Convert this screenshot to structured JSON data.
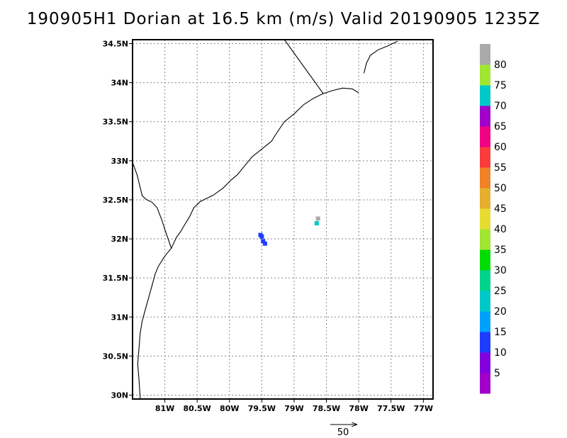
{
  "title": "190905H1 Dorian at 16.5 km (m/s) Valid 20190905  1235Z",
  "map": {
    "lon_range": [
      -81.5,
      -76.85
    ],
    "lat_range": [
      29.95,
      34.55
    ],
    "lon_ticks": [
      {
        "value": -81,
        "label": "81W"
      },
      {
        "value": -80.5,
        "label": "80.5W"
      },
      {
        "value": -80,
        "label": "80W"
      },
      {
        "value": -79.5,
        "label": "79.5W"
      },
      {
        "value": -79,
        "label": "79W"
      },
      {
        "value": -78.5,
        "label": "78.5W"
      },
      {
        "value": -78,
        "label": "78W"
      },
      {
        "value": -77.5,
        "label": "77.5W"
      },
      {
        "value": -77,
        "label": "77W"
      }
    ],
    "lat_ticks": [
      {
        "value": 30,
        "label": "30N"
      },
      {
        "value": 30.5,
        "label": "30.5N"
      },
      {
        "value": 31,
        "label": "31N"
      },
      {
        "value": 31.5,
        "label": "31.5N"
      },
      {
        "value": 32,
        "label": "32N"
      },
      {
        "value": 32.5,
        "label": "32.5N"
      },
      {
        "value": 33,
        "label": "33N"
      },
      {
        "value": 33.5,
        "label": "33.5N"
      },
      {
        "value": 34,
        "label": "34N"
      },
      {
        "value": 34.5,
        "label": "34.5N"
      }
    ],
    "grid": true,
    "coastline": [
      [
        -81.5,
        32.98
      ],
      [
        -81.43,
        32.82
      ],
      [
        -81.35,
        32.55
      ],
      [
        -81.28,
        32.5
      ],
      [
        -81.2,
        32.47
      ],
      [
        -81.12,
        32.4
      ],
      [
        -81.05,
        32.25
      ],
      [
        -81.0,
        32.12
      ],
      [
        -80.95,
        32.0
      ],
      [
        -80.9,
        31.88
      ],
      [
        -81.0,
        31.78
      ],
      [
        -81.1,
        31.65
      ],
      [
        -81.15,
        31.55
      ],
      [
        -81.2,
        31.4
      ],
      [
        -81.25,
        31.25
      ],
      [
        -81.3,
        31.1
      ],
      [
        -81.35,
        30.95
      ],
      [
        -81.38,
        30.8
      ],
      [
        -81.4,
        30.6
      ],
      [
        -81.42,
        30.4
      ],
      [
        -81.4,
        30.2
      ],
      [
        -81.38,
        29.95
      ]
    ],
    "coastline_north": [
      [
        -80.9,
        31.88
      ],
      [
        -80.82,
        32.02
      ],
      [
        -80.75,
        32.1
      ],
      [
        -80.68,
        32.2
      ],
      [
        -80.62,
        32.28
      ],
      [
        -80.55,
        32.4
      ],
      [
        -80.45,
        32.48
      ],
      [
        -80.35,
        32.52
      ],
      [
        -80.25,
        32.56
      ],
      [
        -80.1,
        32.65
      ],
      [
        -79.98,
        32.75
      ],
      [
        -79.88,
        32.82
      ],
      [
        -79.78,
        32.92
      ],
      [
        -79.65,
        33.05
      ],
      [
        -79.5,
        33.15
      ],
      [
        -79.35,
        33.25
      ],
      [
        -79.25,
        33.38
      ],
      [
        -79.15,
        33.5
      ],
      [
        -79.0,
        33.6
      ],
      [
        -78.85,
        33.72
      ],
      [
        -78.7,
        33.8
      ],
      [
        -78.55,
        33.86
      ],
      [
        -78.4,
        33.9
      ],
      [
        -78.25,
        33.93
      ],
      [
        -78.1,
        33.92
      ],
      [
        -78.0,
        33.87
      ]
    ],
    "coastline_outer_banks": [
      [
        -77.92,
        34.12
      ],
      [
        -77.88,
        34.25
      ],
      [
        -77.82,
        34.35
      ],
      [
        -77.7,
        34.42
      ],
      [
        -77.55,
        34.47
      ],
      [
        -77.4,
        34.53
      ]
    ],
    "state_border": [
      [
        -79.15,
        34.55
      ],
      [
        -78.55,
        33.86
      ]
    ],
    "wind_cells": [
      {
        "lon": -79.5,
        "lat": 32.03,
        "speed": 12
      },
      {
        "lon": -79.48,
        "lat": 31.97,
        "speed": 10
      },
      {
        "lon": -79.45,
        "lat": 31.94,
        "speed": 11
      },
      {
        "lon": -79.52,
        "lat": 32.05,
        "speed": 13
      },
      {
        "lon": -78.65,
        "lat": 32.2,
        "speed": 22
      },
      {
        "lon": -78.63,
        "lat": 32.26,
        "speed": 84
      }
    ]
  },
  "colorbar": {
    "labels": [
      "5",
      "10",
      "15",
      "20",
      "25",
      "30",
      "35",
      "40",
      "45",
      "50",
      "55",
      "60",
      "65",
      "70",
      "75",
      "80"
    ],
    "colors": [
      "#a000c8",
      "#8200dc",
      "#1e3cff",
      "#00a0ff",
      "#00c8c8",
      "#00d28c",
      "#00dc00",
      "#a0e632",
      "#e6dc32",
      "#e6af2d",
      "#f08228",
      "#fa3c3c",
      "#f00082",
      "#a000c8",
      "#00c8c8",
      "#a0e632",
      "#aaaaaa"
    ]
  },
  "vector_legend": {
    "label": "50"
  }
}
